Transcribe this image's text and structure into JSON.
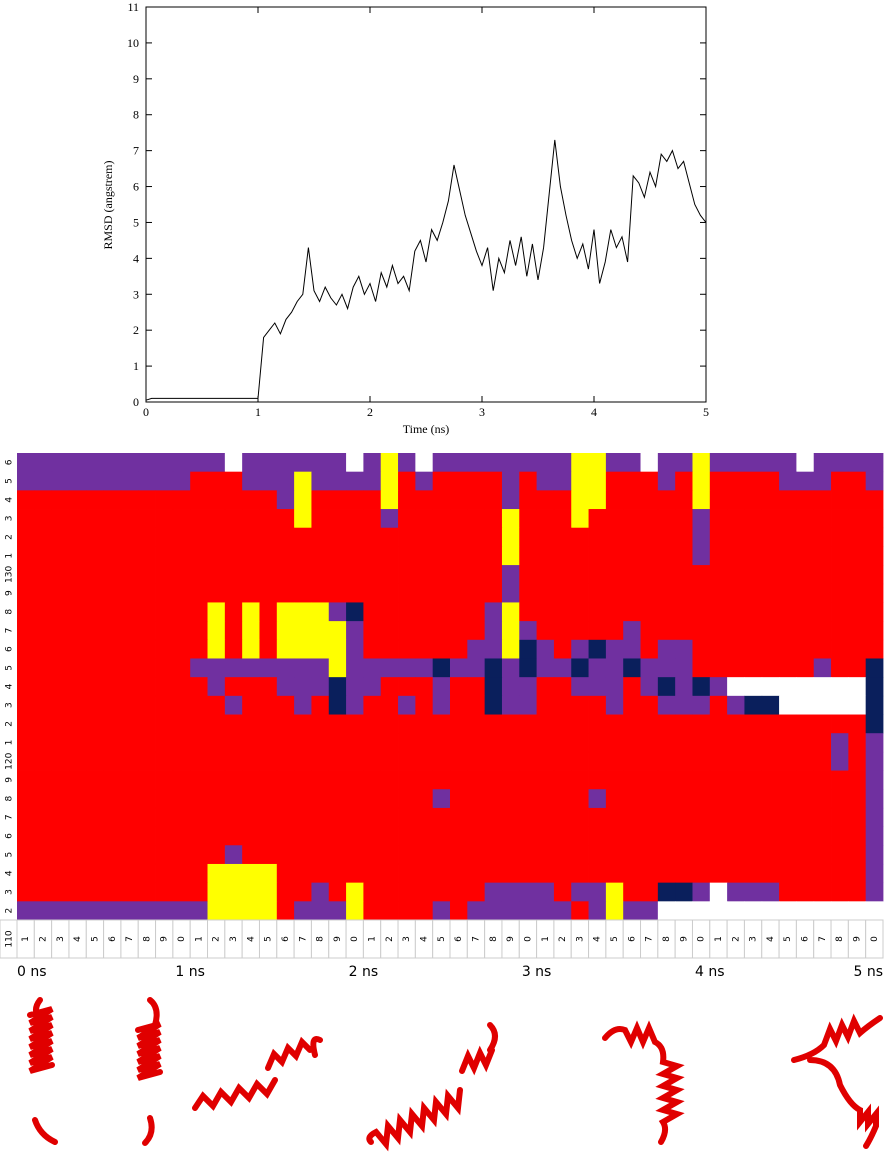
{
  "chart_data": [
    {
      "type": "line",
      "x_label": "Time (ns)",
      "y_label": "RMSD (angstrem)",
      "color": "#000000",
      "x": [
        0,
        0.05,
        0.1,
        0.15,
        0.2,
        0.25,
        0.3,
        0.35,
        0.4,
        0.45,
        0.5,
        0.55,
        0.6,
        0.65,
        0.7,
        0.75,
        0.8,
        0.85,
        0.9,
        0.95,
        1,
        1.05,
        1.1,
        1.15,
        1.2,
        1.25,
        1.3,
        1.35,
        1.4,
        1.45,
        1.5,
        1.55,
        1.6,
        1.65,
        1.7,
        1.75,
        1.8,
        1.85,
        1.9,
        1.95,
        2,
        2.05,
        2.1,
        2.15,
        2.2,
        2.25,
        2.3,
        2.35,
        2.4,
        2.45,
        2.5,
        2.55,
        2.6,
        2.65,
        2.7,
        2.75,
        2.8,
        2.85,
        2.9,
        2.95,
        3,
        3.05,
        3.1,
        3.15,
        3.2,
        3.25,
        3.3,
        3.35,
        3.4,
        3.45,
        3.5,
        3.55,
        3.6,
        3.65,
        3.7,
        3.75,
        3.8,
        3.85,
        3.9,
        3.95,
        4,
        4.05,
        4.1,
        4.15,
        4.2,
        4.25,
        4.3,
        4.35,
        4.4,
        4.45,
        4.5,
        4.55,
        4.6,
        4.65,
        4.7,
        4.75,
        4.8,
        4.85,
        4.9,
        4.95,
        5
      ],
      "values": [
        0.05,
        0.1,
        0.1,
        0.1,
        0.1,
        0.1,
        0.1,
        0.1,
        0.1,
        0.1,
        0.1,
        0.1,
        0.1,
        0.1,
        0.1,
        0.1,
        0.1,
        0.1,
        0.1,
        0.1,
        0.1,
        1.8,
        2.0,
        2.2,
        1.9,
        2.3,
        2.5,
        2.8,
        3.0,
        4.3,
        3.1,
        2.8,
        3.2,
        2.9,
        2.7,
        3.0,
        2.6,
        3.2,
        3.5,
        3.0,
        3.3,
        2.8,
        3.6,
        3.2,
        3.8,
        3.3,
        3.5,
        3.1,
        4.2,
        4.5,
        3.9,
        4.8,
        4.5,
        5.0,
        5.6,
        6.6,
        5.9,
        5.2,
        4.7,
        4.2,
        3.8,
        4.3,
        3.1,
        4.0,
        3.6,
        4.5,
        3.8,
        4.6,
        3.5,
        4.4,
        3.4,
        4.3,
        5.8,
        7.3,
        6.0,
        5.2,
        4.5,
        4.0,
        4.4,
        3.7,
        4.8,
        3.3,
        3.9,
        4.8,
        4.3,
        4.6,
        3.9,
        6.3,
        6.1,
        5.7,
        6.4,
        6.0,
        6.9,
        6.7,
        7.0,
        6.5,
        6.7,
        6.1,
        5.5,
        5.2,
        5.0
      ],
      "xlim": [
        0,
        5
      ],
      "xticks": [
        0,
        1,
        2,
        3,
        4,
        5
      ],
      "ylim": [
        0,
        11
      ],
      "yticks": [
        0,
        1,
        2,
        3,
        4,
        5,
        6,
        7,
        8,
        9,
        10,
        11
      ]
    },
    {
      "type": "heatmap",
      "colors": {
        "R": "#ff0000",
        "P": "#7030a0",
        "Y": "#ffff00",
        "N": "#0a1f5c",
        "W": "#ffffff"
      },
      "row_labels": [
        "6",
        "5",
        "4",
        "3",
        "2",
        "1",
        "130",
        "9",
        "8",
        "7",
        "6",
        "5",
        "4",
        "3",
        "2",
        "1",
        "120",
        "9",
        "8",
        "7",
        "6",
        "5",
        "4",
        "3",
        "2"
      ],
      "corner_label": "110",
      "column_labels": [
        "1",
        "2",
        "3",
        "4",
        "5",
        "6",
        "7",
        "8",
        "9",
        "0",
        "1",
        "2",
        "3",
        "4",
        "5",
        "6",
        "7",
        "8",
        "9",
        "0",
        "1",
        "2",
        "3",
        "4",
        "5",
        "6",
        "7",
        "8",
        "9",
        "0",
        "1",
        "2",
        "3",
        "4",
        "5",
        "6",
        "7",
        "8",
        "9",
        "0",
        "1",
        "2",
        "3",
        "4",
        "5",
        "6",
        "7",
        "8",
        "9",
        "0"
      ],
      "time_labels": [
        "0 ns",
        "1 ns",
        "2 ns",
        "3 ns",
        "4 ns",
        "5 ns"
      ],
      "cells": [
        "PPPPPPPPPPPPWPPPPPPWPYPWPPPPPPPPYYPPWPPYPPPPPWPPPP",
        "PPPPPPPPPPRRRPPPYPPPPYRPRRRRPRPPYYRRRPRYRRRRPPPRRP",
        "RRRRRRRRRRRRRRRPYRRRRYRRRRRRPRRRYYRRRRRYRRRRRRRRRR",
        "RRRRRRRRRRRRRRRRYRRRRPRRRRRRYRRRYRRRRRRPRRRRRRRRRR",
        "RRRRRRRRRRRRRRRRRRRRRRRRRRRRYRRRRRRRRRRPRRRRRRRRRR",
        "RRRRRRRRRRRRRRRRRRRRRRRRRRRRYRRRRRRRRRRPRRRRRRRRRR",
        "RRRRRRRRRRRRRRRRRRRRRRRRRRRRPRRRRRRRRRRRRRRRRRRRRR",
        "RRRRRRRRRRRRRRRRRRRRRRRRRRRRPRRRRRRRRRRRRRRRRRRRRR",
        "RRRRRRRRRRRYRYRYYYPNRRRRRRRPYRRRRRRRRRRRRRRRRRRRRR",
        "RRRRRRRRRRRYRYRYYYYPRRRRRRRPYPRRRRRPRRRRRRRRRRRRRR",
        "RRRRRRRRRRRYRYRYYYYPRRRRRRPPYNPRPNPPRPPRRRRRRRRRRR",
        "RRRRRRRRRRPPPPPPPPYPPPPPNPPNPNPPNPPNPPPRRRRRRRPRRN",
        "RRRRRRRRRRRPRRRPPPNPPRRRPRRNPPRRPPPRPNPNPWWWWWWWWN",
        "RRRRRRRRRRRRPRRRPRNPRRPRPRRNPPRRRRPRRPPPRPNNWWWWWN",
        "RRRRRRRRRRRRRRRRRRRRRRRRRRRRRRRRRRRRRRRRRRRRRRRRRN",
        "RRRRRRRRRRRRRRRRRRRRRRRRRRRRRRRRRRRRRRRRRRRRRRRPRP",
        "RRRRRRRRRRRRRRRRRRRRRRRRRRRRRRRRRRRRRRRRRRRRRRRPRP",
        "RRRRRRRRRRRRRRRRRRRRRRRRRRRRRRRRRRRRRRRRRRRRRRRRRP",
        "RRRRRRRRRRRRRRRRRRRRRRRRPRRRRRRRRPRRRRRRRRRRRRRRRP",
        "RRRRRRRRRRRRRRRRRRRRRRRRRRRRRRRRRRRRRRRRRRRRRRRRRP",
        "RRRRRRRRRRRRRRRRRRRRRRRRRRRRRRRRRRRRRRRRRRRRRRRRRP",
        "RRRRRRRRRRRRPRRRRRRRRRRRRRRRRRRRRRRRRRRRRRRRRRRRRP",
        "RRRRRRRRRRRYYYYRRRRRRRRRRRRRRRRRRRRRRRRRRRRRRRRRRP",
        "RRRRRRRRRRRYYYYRRPRYRRRRRRRPPPPRPPYRRNNPWPPPRRRRRP",
        "PPPPPPPPPPPYYYYRPPPYRRRRPRPPPPPPRPYPPWWWWWWWWWWWWW"
      ]
    }
  ]
}
